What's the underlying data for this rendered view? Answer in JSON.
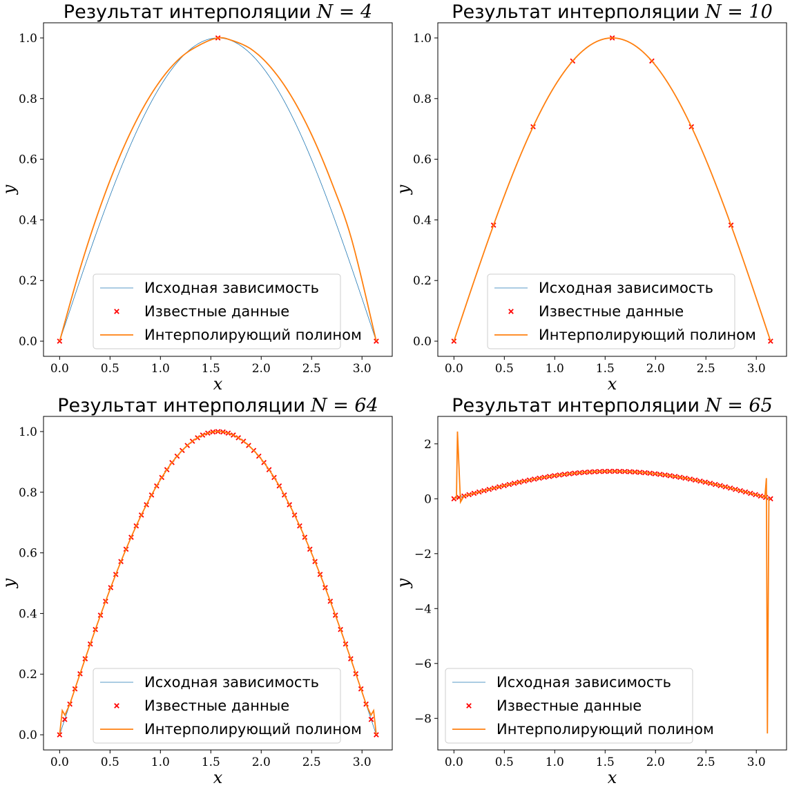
{
  "chart_data": [
    {
      "type": "line",
      "title": "Результат интерполяции",
      "title_math": "N = 4",
      "xlabel": "x",
      "ylabel": "y",
      "xlim": [
        -0.16,
        3.3
      ],
      "ylim": [
        -0.05,
        1.05
      ],
      "xticks": [
        0,
        0.5,
        1,
        1.5,
        2,
        2.5,
        3
      ],
      "xtick_labels": [
        "0.0",
        "0.5",
        "1.0",
        "1.5",
        "2.0",
        "2.5",
        "3.0"
      ],
      "yticks": [
        0,
        0.2,
        0.4,
        0.6,
        0.8,
        1.0
      ],
      "ytick_labels": [
        "0.0",
        "0.2",
        "0.4",
        "0.6",
        "0.8",
        "1.0"
      ],
      "legend_location": "lower center",
      "series": [
        {
          "name": "Исходная зависимость",
          "kind": "line",
          "color": "#1f77b4",
          "function": "sin(x)",
          "x_range": [
            0,
            3.14159
          ]
        },
        {
          "name": "Известные данные",
          "kind": "scatter",
          "marker": "x",
          "color": "#ff0000",
          "points": [
            [
              0.0,
              0.0
            ],
            [
              1.5708,
              1.0
            ],
            [
              3.1416,
              0.0
            ]
          ]
        },
        {
          "name": "Интерполирующий полином",
          "kind": "line",
          "color": "#ff7f0e",
          "points": [
            [
              0.0,
              0.0
            ],
            [
              0.2,
              0.2362
            ],
            [
              0.4,
              0.4403
            ],
            [
              0.6,
              0.6122
            ],
            [
              0.8,
              0.752
            ],
            [
              1.0,
              0.8597
            ],
            [
              1.2,
              0.9352
            ],
            [
              1.4,
              0.9786
            ],
            [
              1.5708,
              1.0
            ],
            [
              1.7,
              0.9929
            ],
            [
              1.9,
              0.9631
            ],
            [
              2.1,
              0.9011
            ],
            [
              2.3,
              0.8071
            ],
            [
              2.5,
              0.6809
            ],
            [
              2.7,
              0.5226
            ],
            [
              2.9,
              0.3322
            ],
            [
              3.1416,
              0.0
            ]
          ]
        }
      ]
    },
    {
      "type": "line",
      "title": "Результат интерполяции",
      "title_math": "N = 10",
      "xlabel": "x",
      "ylabel": "y",
      "xlim": [
        -0.16,
        3.3
      ],
      "ylim": [
        -0.05,
        1.05
      ],
      "xticks": [
        0,
        0.5,
        1,
        1.5,
        2,
        2.5,
        3
      ],
      "xtick_labels": [
        "0.0",
        "0.5",
        "1.0",
        "1.5",
        "2.0",
        "2.5",
        "3.0"
      ],
      "yticks": [
        0,
        0.2,
        0.4,
        0.6,
        0.8,
        1.0
      ],
      "ytick_labels": [
        "0.0",
        "0.2",
        "0.4",
        "0.6",
        "0.8",
        "1.0"
      ],
      "legend_location": "lower center",
      "series": [
        {
          "name": "Исходная зависимость",
          "kind": "line",
          "color": "#1f77b4",
          "function": "sin(x)",
          "x_range": [
            0,
            3.14159
          ]
        },
        {
          "name": "Известные данные",
          "kind": "scatter",
          "marker": "x",
          "color": "#ff0000",
          "points": [
            [
              0.0,
              0.0
            ],
            [
              0.3927,
              0.3827
            ],
            [
              0.7854,
              0.7071
            ],
            [
              1.1781,
              0.9239
            ],
            [
              1.5708,
              1.0
            ],
            [
              1.9635,
              0.9239
            ],
            [
              2.3562,
              0.7071
            ],
            [
              2.7489,
              0.3827
            ],
            [
              3.1416,
              0.0
            ]
          ]
        },
        {
          "name": "Интерполирующий полином",
          "kind": "line",
          "color": "#ff7f0e",
          "function": "sin(x)",
          "x_range": [
            0,
            3.14159
          ]
        }
      ]
    },
    {
      "type": "line",
      "title": "Результат интерполяции",
      "title_math": "N = 64",
      "xlabel": "x",
      "ylabel": "y",
      "xlim": [
        -0.16,
        3.3
      ],
      "ylim": [
        -0.05,
        1.05
      ],
      "xticks": [
        0,
        0.5,
        1,
        1.5,
        2,
        2.5,
        3
      ],
      "xtick_labels": [
        "0.0",
        "0.5",
        "1.0",
        "1.5",
        "2.0",
        "2.5",
        "3.0"
      ],
      "yticks": [
        0,
        0.2,
        0.4,
        0.6,
        0.8,
        1.0
      ],
      "ytick_labels": [
        "0.0",
        "0.2",
        "0.4",
        "0.6",
        "0.8",
        "1.0"
      ],
      "legend_location": "lower center",
      "series": [
        {
          "name": "Исходная зависимость",
          "kind": "line",
          "color": "#1f77b4",
          "function": "sin(x)",
          "x_range": [
            0,
            3.14159
          ]
        },
        {
          "name": "Известные данные",
          "kind": "scatter",
          "marker": "x",
          "color": "#ff0000",
          "function": "sin(x)",
          "sample_count": 63,
          "x_range": [
            0,
            3.14159
          ]
        },
        {
          "name": "Интерполирующий полином",
          "kind": "line",
          "color": "#ff7f0e",
          "points": [
            [
              0.0,
              0.0
            ],
            [
              0.0262,
              0.08
            ],
            [
              0.0524,
              0.065
            ],
            [
              0.1015,
              0.1014
            ],
            [
              3.0401,
              0.1014
            ],
            [
              3.0892,
              0.065
            ],
            [
              3.1154,
              0.08
            ],
            [
              3.1416,
              0.0
            ]
          ],
          "between": "sin(x)"
        }
      ]
    },
    {
      "type": "line",
      "title": "Результат интерполяции",
      "title_math": "N = 65",
      "xlabel": "x",
      "ylabel": "y",
      "xlim": [
        -0.16,
        3.3
      ],
      "ylim": [
        -9.15,
        3.0
      ],
      "xticks": [
        0,
        0.5,
        1,
        1.5,
        2,
        2.5,
        3
      ],
      "xtick_labels": [
        "0.0",
        "0.5",
        "1.0",
        "1.5",
        "2.0",
        "2.5",
        "3.0"
      ],
      "yticks": [
        -8,
        -6,
        -4,
        -2,
        0,
        2
      ],
      "ytick_labels": [
        "−8",
        "−6",
        "−4",
        "−2",
        "0",
        "2"
      ],
      "legend_location": "lower left",
      "series": [
        {
          "name": "Исходная зависимость",
          "kind": "line",
          "color": "#1f77b4",
          "function": "sin(x)",
          "x_range": [
            0,
            3.14159
          ]
        },
        {
          "name": "Известные данные",
          "kind": "scatter",
          "marker": "x",
          "color": "#ff0000",
          "function": "sin(x)",
          "sample_count": 64,
          "x_range": [
            0,
            3.14159
          ]
        },
        {
          "name": "Интерполирующий полином",
          "kind": "line",
          "color": "#ff7f0e",
          "points": [
            [
              0.0,
              0.0
            ],
            [
              0.025,
              0.04
            ],
            [
              0.035,
              2.45
            ],
            [
              0.065,
              -0.12
            ],
            [
              0.1,
              0.1
            ],
            [
              3.06,
              0.08
            ],
            [
              3.085,
              0.05
            ],
            [
              3.1,
              0.75
            ],
            [
              3.11,
              -8.55
            ],
            [
              3.125,
              0.0
            ],
            [
              3.1416,
              0.0
            ]
          ],
          "between": "sin(x)"
        }
      ]
    }
  ]
}
